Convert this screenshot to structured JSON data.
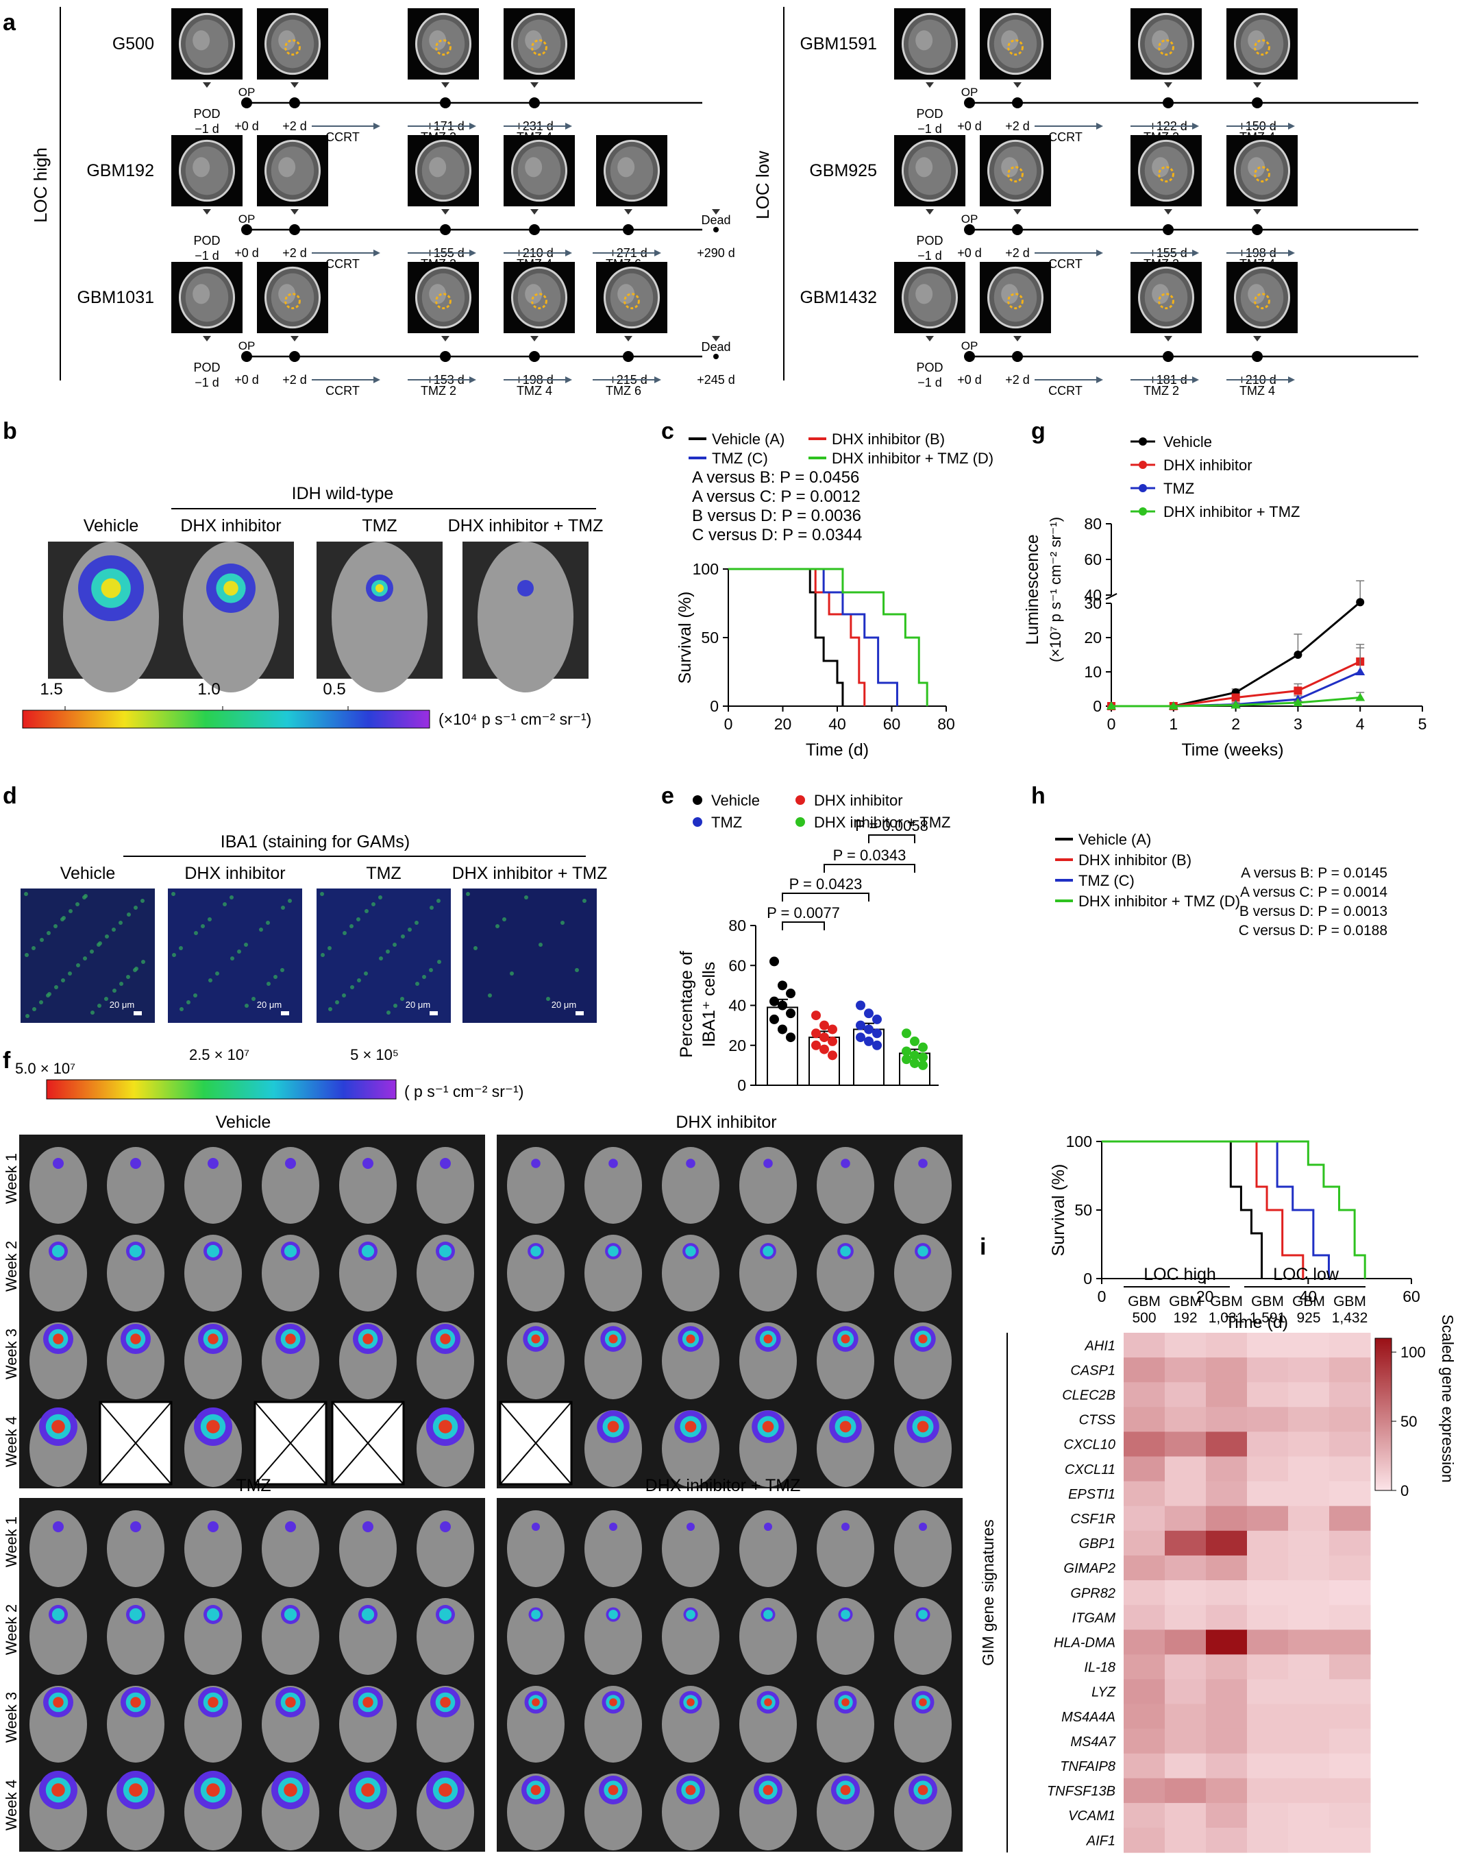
{
  "panels": {
    "a": {
      "letter": "a",
      "left_group": "LOC high",
      "right_group": "LOC low",
      "cases_left": [
        {
          "name": "G500",
          "pod": "POD",
          "pod_day": "−1 d",
          "op": "OP",
          "days": [
            "+0 d",
            "+2 d",
            "+171 d",
            "+231 d"
          ],
          "treatments": [
            "CCRT",
            "TMZ 2",
            "TMZ 4"
          ],
          "end": ""
        },
        {
          "name": "GBM192",
          "pod": "POD",
          "pod_day": "−1 d",
          "op": "OP",
          "days": [
            "+0 d",
            "+2 d",
            "+155 d",
            "+210 d",
            "+271 d",
            "+290 d"
          ],
          "treatments": [
            "CCRT",
            "TMZ 2",
            "TMZ 4",
            "TMZ 6"
          ],
          "end": "Dead"
        },
        {
          "name": "GBM1031",
          "pod": "POD",
          "pod_day": "−1 d",
          "op": "OP",
          "days": [
            "+0 d",
            "+2 d",
            "+153 d",
            "+198 d",
            "+215 d",
            "+245 d"
          ],
          "treatments": [
            "CCRT",
            "TMZ 2",
            "TMZ 4",
            "TMZ 6"
          ],
          "end": "Dead"
        }
      ],
      "cases_right": [
        {
          "name": "GBM1591",
          "pod": "POD",
          "pod_day": "−1 d",
          "op": "OP",
          "days": [
            "+0 d",
            "+2 d",
            "+122 d",
            "+150 d"
          ],
          "treatments": [
            "CCRT",
            "TMZ 2",
            "TMZ 4"
          ]
        },
        {
          "name": "GBM925",
          "pod": "POD",
          "pod_day": "−1 d",
          "op": "OP",
          "days": [
            "+0 d",
            "+2 d",
            "+155 d",
            "+198 d"
          ],
          "treatments": [
            "CCRT",
            "TMZ 2",
            "TMZ 4"
          ]
        },
        {
          "name": "GBM1432",
          "pod": "POD",
          "pod_day": "−1 d",
          "op": "OP",
          "days": [
            "+0 d",
            "+2 d",
            "+181 d",
            "+210 d"
          ],
          "treatments": [
            "CCRT",
            "TMZ 2",
            "TMZ 4"
          ]
        }
      ]
    },
    "b": {
      "letter": "b",
      "header": "IDH wild-type",
      "groups": [
        "Vehicle",
        "DHX inhibitor",
        "TMZ",
        "DHX inhibitor + TMZ"
      ],
      "scale_ticks": [
        "1.5",
        "1.0",
        "0.5"
      ],
      "scale_unit": "(×10⁴ p s⁻¹ cm⁻² sr⁻¹)"
    },
    "d": {
      "letter": "d",
      "header": "IBA1 (staining for GAMs)",
      "groups": [
        "Vehicle",
        "DHX inhibitor",
        "TMZ",
        "DHX inhibitor + TMZ"
      ],
      "scalebar": "20 μm"
    },
    "f": {
      "letter": "f",
      "scale_ticks": [
        "5.0 × 10⁷",
        "2.5 × 10⁷",
        "5 × 10⁵"
      ],
      "scale_unit": "( p s⁻¹ cm⁻² sr⁻¹)",
      "groups": [
        "Vehicle",
        "DHX inhibitor",
        "TMZ",
        "DHX inhibitor + TMZ"
      ],
      "weeks": [
        "Week 1",
        "Week 2",
        "Week 3",
        "Week 4"
      ]
    },
    "i": {
      "letter": "i",
      "group_labels": [
        "LOC high",
        "LOC low"
      ],
      "sample_labels": [
        [
          "GBM",
          "500"
        ],
        [
          "GBM",
          "192"
        ],
        [
          "GBM",
          "1,031"
        ],
        [
          "GBM",
          "1,591"
        ],
        [
          "GBM",
          "925"
        ],
        [
          "GBM",
          "1,432"
        ]
      ],
      "row_axis_label": "GIM gene signatures",
      "legend_title": "Scaled gene expression",
      "legend_ticks": [
        "100",
        "50",
        "0"
      ]
    }
  },
  "chart_data": [
    {
      "id": "c",
      "letter": "c",
      "type": "line",
      "subtype": "kaplan-meier",
      "legend": [
        "Vehicle (A)",
        "DHX inhibitor (B)",
        "TMZ (C)",
        "DHX inhibitor + TMZ (D)"
      ],
      "stats": [
        "A versus B: P = 0.0456",
        "A versus C: P = 0.0012",
        "B versus D: P = 0.0036",
        "C versus D: P = 0.0344"
      ],
      "xlabel": "Time (d)",
      "ylabel": "Survival (%)",
      "xlim": [
        0,
        80
      ],
      "ylim": [
        0,
        100
      ],
      "xticks": [
        0,
        20,
        40,
        60,
        80
      ],
      "yticks": [
        0,
        50,
        100
      ],
      "colors": [
        "#000000",
        "#e0201e",
        "#1f2fc4",
        "#2ec21f"
      ],
      "series": [
        {
          "name": "Vehicle (A)",
          "x": [
            0,
            30,
            32,
            35,
            40,
            42
          ],
          "y": [
            100,
            83,
            50,
            33,
            17,
            0
          ]
        },
        {
          "name": "DHX inhibitor (B)",
          "x": [
            0,
            32,
            37,
            45,
            48,
            50
          ],
          "y": [
            100,
            83,
            67,
            50,
            17,
            0
          ]
        },
        {
          "name": "TMZ (C)",
          "x": [
            0,
            35,
            42,
            50,
            55,
            62
          ],
          "y": [
            100,
            83,
            67,
            50,
            17,
            0
          ]
        },
        {
          "name": "DHX inhibitor + TMZ (D)",
          "x": [
            0,
            42,
            57,
            65,
            70,
            73
          ],
          "y": [
            100,
            83,
            67,
            50,
            17,
            0
          ]
        }
      ]
    },
    {
      "id": "g",
      "letter": "g",
      "type": "line",
      "legend": [
        "Vehicle",
        "DHX inhibitor",
        "TMZ",
        "DHX inhibitor + TMZ"
      ],
      "xlabel": "Time (weeks)",
      "ylabel": "Luminescence",
      "ylabel2": "(×10⁷ p s⁻¹ cm⁻² sr⁻¹)",
      "xlim": [
        0,
        5
      ],
      "xticks": [
        0,
        1,
        2,
        3,
        4,
        5
      ],
      "yticks": [
        0,
        10,
        20,
        30,
        40,
        60,
        80
      ],
      "axis_break": [
        30,
        40
      ],
      "colors": [
        "#000000",
        "#e0201e",
        "#1f2fc4",
        "#2ec21f"
      ],
      "series": [
        {
          "name": "Vehicle",
          "x": [
            0,
            1,
            2,
            3,
            4
          ],
          "y": [
            0,
            0,
            4,
            15,
            36
          ],
          "err": [
            0,
            0,
            1,
            6,
            12
          ]
        },
        {
          "name": "DHX inhibitor",
          "x": [
            0,
            1,
            2,
            3,
            4
          ],
          "y": [
            0,
            0,
            2.5,
            4.5,
            13
          ],
          "err": [
            0,
            0,
            1,
            2,
            5
          ]
        },
        {
          "name": "TMZ",
          "x": [
            0,
            1,
            2,
            3,
            4
          ],
          "y": [
            0,
            0,
            0.5,
            2,
            10
          ],
          "err": [
            0,
            0,
            0.5,
            1,
            7
          ]
        },
        {
          "name": "DHX inhibitor + TMZ",
          "x": [
            0,
            1,
            2,
            3,
            4
          ],
          "y": [
            0,
            0,
            0.3,
            1,
            2.5
          ],
          "err": [
            0,
            0,
            0.3,
            0.5,
            1.5
          ]
        }
      ]
    },
    {
      "id": "e",
      "letter": "e",
      "type": "bar",
      "legend": [
        "Vehicle",
        "DHX inhibitor",
        "TMZ",
        "DHX inhibitor + TMZ"
      ],
      "ylabel": "Percentage of",
      "ylabel2": "IBA1⁺ cells",
      "ylim": [
        0,
        80
      ],
      "yticks": [
        0,
        20,
        40,
        60,
        80
      ],
      "colors": [
        "#000000",
        "#e0201e",
        "#1f2fc4",
        "#2ec21f"
      ],
      "categories": [
        "Vehicle",
        "DHX inhibitor",
        "TMZ",
        "DHX inhibitor + TMZ"
      ],
      "values": [
        39,
        24,
        28,
        16
      ],
      "err": [
        4,
        3,
        3,
        2
      ],
      "points": [
        [
          62,
          50,
          46,
          42,
          40,
          36,
          33,
          28,
          24
        ],
        [
          35,
          30,
          28,
          26,
          24,
          22,
          20,
          18,
          15
        ],
        [
          40,
          36,
          33,
          30,
          28,
          26,
          24,
          22,
          20
        ],
        [
          26,
          22,
          19,
          17,
          15,
          14,
          13,
          11,
          10
        ]
      ],
      "comparisons": [
        {
          "label": "P = 0.0077",
          "a": 0,
          "b": 1
        },
        {
          "label": "P = 0.0423",
          "a": 0,
          "b": 2
        },
        {
          "label": "P = 0.0343",
          "a": 1,
          "b": 3
        },
        {
          "label": "P = 0.0058",
          "a": 2,
          "b": 3
        }
      ]
    },
    {
      "id": "h",
      "letter": "h",
      "type": "line",
      "subtype": "kaplan-meier",
      "legend": [
        "Vehicle (A)",
        "DHX inhibitor (B)",
        "TMZ (C)",
        "DHX inhibitor + TMZ (D)"
      ],
      "stats": [
        "A versus B: P = 0.0145",
        "A versus C: P = 0.0014",
        "B versus D: P = 0.0013",
        "C versus D: P = 0.0188"
      ],
      "xlabel": "Time (d)",
      "ylabel": "Survival (%)",
      "xlim": [
        0,
        60
      ],
      "ylim": [
        0,
        100
      ],
      "xticks": [
        0,
        20,
        40,
        60
      ],
      "yticks": [
        0,
        50,
        100
      ],
      "colors": [
        "#000000",
        "#e0201e",
        "#1f2fc4",
        "#2ec21f"
      ],
      "series": [
        {
          "name": "Vehicle (A)",
          "x": [
            0,
            25,
            27,
            29,
            31
          ],
          "y": [
            100,
            67,
            50,
            33,
            0
          ]
        },
        {
          "name": "DHX inhibitor (B)",
          "x": [
            0,
            30,
            32,
            35,
            39
          ],
          "y": [
            100,
            67,
            50,
            17,
            0
          ]
        },
        {
          "name": "TMZ (C)",
          "x": [
            0,
            34,
            37,
            41,
            44
          ],
          "y": [
            100,
            67,
            50,
            17,
            0
          ]
        },
        {
          "name": "DHX inhibitor + TMZ (D)",
          "x": [
            0,
            40,
            43,
            46,
            49,
            51
          ],
          "y": [
            100,
            83,
            67,
            50,
            17,
            0
          ]
        }
      ]
    },
    {
      "id": "i",
      "letter": "i",
      "type": "heatmap",
      "columns": [
        "GBM 500",
        "GBM 192",
        "GBM 1,031",
        "GBM 1,591",
        "GBM 925",
        "GBM 1,432"
      ],
      "rows": [
        "AHI1",
        "CASP1",
        "CLEC2B",
        "CTSS",
        "CXCL10",
        "CXCL11",
        "EPSTI1",
        "CSF1R",
        "GBP1",
        "GIMAP2",
        "GPR82",
        "ITGAM",
        "HLA-DMA",
        "IL-18",
        "LYZ",
        "MS4A4A",
        "MS4A7",
        "TNFAIP8",
        "TNFSF13B",
        "VCAM1",
        "AIF1"
      ],
      "zlim": [
        0,
        110
      ],
      "values": [
        [
          20,
          12,
          15,
          8,
          8,
          10
        ],
        [
          40,
          30,
          35,
          20,
          18,
          25
        ],
        [
          30,
          20,
          35,
          15,
          12,
          20
        ],
        [
          35,
          25,
          30,
          28,
          22,
          25
        ],
        [
          60,
          50,
          75,
          18,
          15,
          20
        ],
        [
          40,
          15,
          30,
          15,
          10,
          12
        ],
        [
          25,
          15,
          28,
          10,
          10,
          8
        ],
        [
          20,
          30,
          45,
          40,
          15,
          40
        ],
        [
          25,
          75,
          95,
          15,
          12,
          18
        ],
        [
          35,
          28,
          35,
          15,
          12,
          15
        ],
        [
          15,
          10,
          12,
          8,
          8,
          6
        ],
        [
          20,
          12,
          18,
          10,
          8,
          10
        ],
        [
          40,
          50,
          110,
          40,
          35,
          35
        ],
        [
          35,
          18,
          25,
          15,
          12,
          22
        ],
        [
          40,
          20,
          30,
          12,
          12,
          12
        ],
        [
          38,
          25,
          30,
          15,
          15,
          15
        ],
        [
          35,
          25,
          30,
          15,
          15,
          12
        ],
        [
          25,
          12,
          20,
          10,
          10,
          8
        ],
        [
          40,
          45,
          35,
          15,
          15,
          15
        ],
        [
          22,
          15,
          28,
          12,
          10,
          12
        ],
        [
          25,
          15,
          20,
          12,
          10,
          10
        ]
      ]
    }
  ]
}
